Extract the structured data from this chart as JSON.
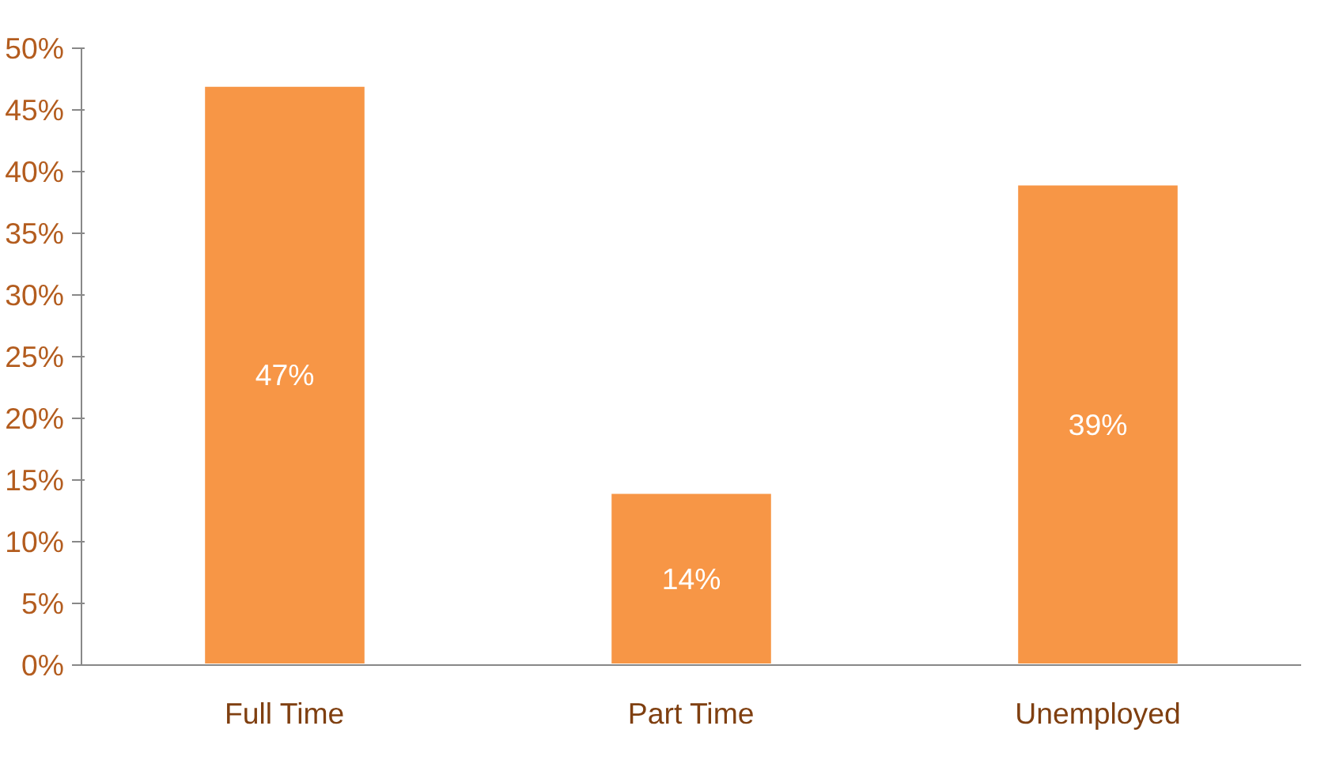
{
  "chart_data": {
    "type": "bar",
    "categories": [
      "Full Time",
      "Part Time",
      "Unemployed"
    ],
    "values": [
      47,
      14,
      39
    ],
    "color": "#f79646",
    "value_labels": [
      "47%",
      "14%",
      "39%"
    ],
    "ylim": [
      0,
      50
    ],
    "yticks": [
      {
        "value": 0,
        "label": "0%"
      },
      {
        "value": 5,
        "label": "5%"
      },
      {
        "value": 10,
        "label": "10%"
      },
      {
        "value": 15,
        "label": "15%"
      },
      {
        "value": 20,
        "label": "20%"
      },
      {
        "value": 25,
        "label": "25%"
      },
      {
        "value": 30,
        "label": "30%"
      },
      {
        "value": 35,
        "label": "35%"
      },
      {
        "value": 40,
        "label": "40%"
      },
      {
        "value": 45,
        "label": "45%"
      },
      {
        "value": 50,
        "label": "50%"
      }
    ],
    "grid": false
  }
}
